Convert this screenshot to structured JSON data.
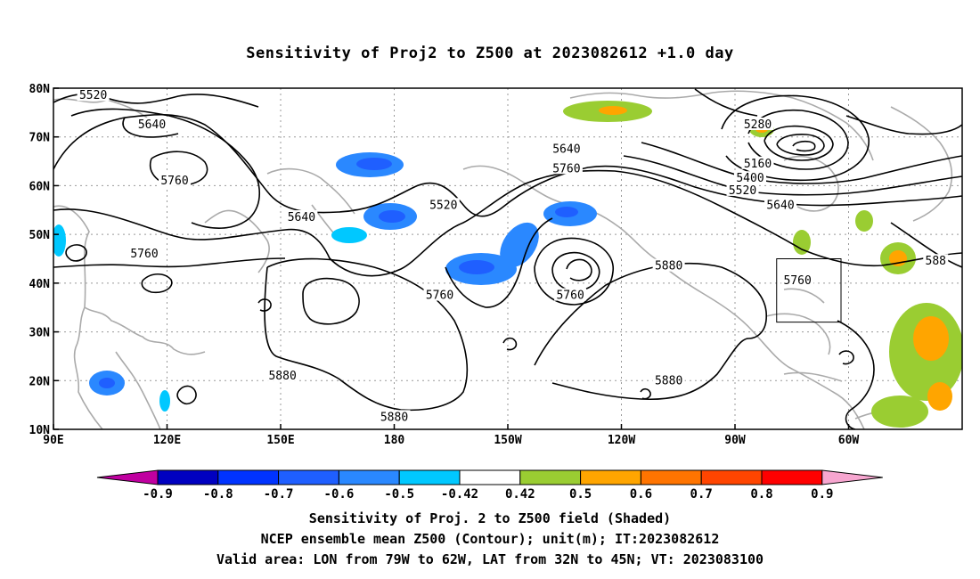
{
  "title": "Sensitivity of Proj2 to Z500 at 2023082612 +1.0 day",
  "map": {
    "lon_range": [
      90,
      330
    ],
    "lat_range": [
      10,
      80
    ],
    "x_ticks": [
      {
        "lon": 90,
        "label": "90E"
      },
      {
        "lon": 120,
        "label": "120E"
      },
      {
        "lon": 150,
        "label": "150E"
      },
      {
        "lon": 180,
        "label": "180"
      },
      {
        "lon": 210,
        "label": "150W"
      },
      {
        "lon": 240,
        "label": "120W"
      },
      {
        "lon": 270,
        "label": "90W"
      },
      {
        "lon": 300,
        "label": "60W"
      }
    ],
    "y_ticks": [
      {
        "lat": 10,
        "label": "10N"
      },
      {
        "lat": 20,
        "label": "20N"
      },
      {
        "lat": 30,
        "label": "30N"
      },
      {
        "lat": 40,
        "label": "40N"
      },
      {
        "lat": 50,
        "label": "50N"
      },
      {
        "lat": 60,
        "label": "60N"
      },
      {
        "lat": 70,
        "label": "70N"
      },
      {
        "lat": 80,
        "label": "80N"
      }
    ],
    "valid_area": {
      "lon_min": 281,
      "lon_max": 298,
      "lat_min": 32,
      "lat_max": 45
    },
    "contour_labels": [
      {
        "text": "5520",
        "lon": 100.5,
        "lat": 78.5
      },
      {
        "text": "5640",
        "lon": 116,
        "lat": 72.5
      },
      {
        "text": "5760",
        "lon": 122,
        "lat": 61
      },
      {
        "text": "5640",
        "lon": 155.5,
        "lat": 53.5
      },
      {
        "text": "5760",
        "lon": 114,
        "lat": 46
      },
      {
        "text": "5520",
        "lon": 193,
        "lat": 56
      },
      {
        "text": "5760",
        "lon": 192,
        "lat": 37.5
      },
      {
        "text": "5880",
        "lon": 150.5,
        "lat": 21
      },
      {
        "text": "5880",
        "lon": 180,
        "lat": 12.5
      },
      {
        "text": "5640",
        "lon": 225.5,
        "lat": 67.5
      },
      {
        "text": "5760",
        "lon": 225.5,
        "lat": 63.5
      },
      {
        "text": "5760",
        "lon": 226.5,
        "lat": 37.5
      },
      {
        "text": "5880",
        "lon": 252.5,
        "lat": 43.5
      },
      {
        "text": "5880",
        "lon": 252.5,
        "lat": 20
      },
      {
        "text": "5280",
        "lon": 276,
        "lat": 72.5
      },
      {
        "text": "5160",
        "lon": 276,
        "lat": 64.5
      },
      {
        "text": "5400",
        "lon": 274,
        "lat": 61.5
      },
      {
        "text": "5520",
        "lon": 272,
        "lat": 59
      },
      {
        "text": "5640",
        "lon": 282,
        "lat": 56
      },
      {
        "text": "5760",
        "lon": 286.5,
        "lat": 40.5
      },
      {
        "text": "588",
        "lon": 323,
        "lat": 44.5
      }
    ]
  },
  "colorbar": {
    "labels": [
      "-0.9",
      "-0.8",
      "-0.7",
      "-0.6",
      "-0.5",
      "-0.42",
      "0.42",
      "0.5",
      "0.6",
      "0.7",
      "0.8",
      "0.9"
    ],
    "colors": [
      "#c000a0",
      "#0000c0",
      "#0033ff",
      "#1f5fff",
      "#2a88ff",
      "#00c8ff",
      "#ffffff",
      "#9acd32",
      "#ffa500",
      "#ff7400",
      "#ff4500",
      "#ff0000",
      "#f7a6d0"
    ]
  },
  "captions": {
    "line1": "Sensitivity of Proj. 2 to Z500 field (Shaded)",
    "line2": "NCEP ensemble mean Z500 (Contour); unit(m); IT:2023082612",
    "line3": "Valid area: LON from 79W to 62W, LAT from 32N to 45N; VT: 2023083100"
  }
}
